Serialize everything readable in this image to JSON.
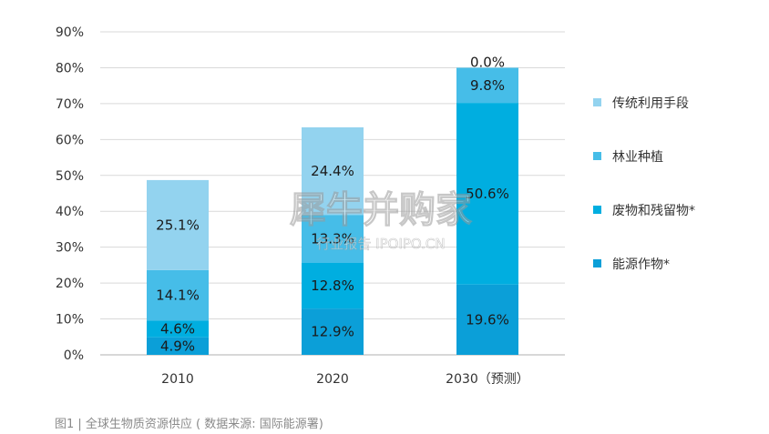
{
  "chart_data": {
    "type": "bar",
    "stacked": true,
    "categories": [
      "2010",
      "2020",
      "2030（预测）"
    ],
    "ylim": [
      0,
      90
    ],
    "yticks": [
      0,
      10,
      20,
      30,
      40,
      50,
      60,
      70,
      80,
      90
    ],
    "ytick_format": "{v}%",
    "grid": true,
    "legend_position": "right",
    "series": [
      {
        "name": "能源作物*",
        "color": "#0b9fd8",
        "values": [
          4.9,
          12.9,
          19.6
        ],
        "labels": [
          "4.9%",
          "12.9%",
          "19.6%"
        ]
      },
      {
        "name": "废物和残留物*",
        "color": "#00aee0",
        "values": [
          4.6,
          12.8,
          50.6
        ],
        "labels": [
          "4.6%",
          "12.8%",
          "50.6%"
        ]
      },
      {
        "name": "林业种植",
        "color": "#46bde8",
        "values": [
          14.1,
          13.3,
          9.8
        ],
        "labels": [
          "14.1%",
          "13.3%",
          "9.8%"
        ]
      },
      {
        "name": "传统利用手段",
        "color": "#93d3ef",
        "values": [
          25.1,
          24.4,
          0.0
        ],
        "labels": [
          "25.1%",
          "24.4%",
          "0.0%"
        ]
      }
    ]
  },
  "caption": "图1 | 全球生物质资源供应 ( 数据来源: 国际能源署)",
  "watermark": {
    "main": "犀牛并购家",
    "sub": "行业报告 IPOIPO.CN"
  }
}
